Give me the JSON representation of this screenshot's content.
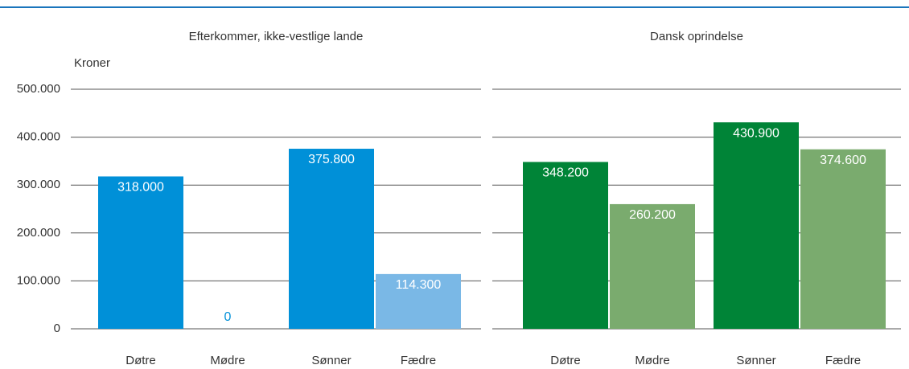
{
  "chart_data": [
    {
      "type": "bar",
      "title": "Efterkommer, ikke-vestlige lande",
      "y_label": "Kroner",
      "categories": [
        "Døtre",
        "Mødre",
        "Sønner",
        "Fædre"
      ],
      "values": [
        318000,
        0,
        375800,
        114300
      ],
      "value_labels": [
        "318.000",
        "0",
        "375.800",
        "114.300"
      ],
      "colors": [
        "#0090d8",
        "#7ab8e6",
        "#0090d8",
        "#7ab8e6"
      ],
      "ylim": [
        0,
        500000
      ],
      "yticks": [
        0,
        {
          "value": 100000,
          "label": "100.000"
        },
        {
          "value": 200000,
          "label": "200.000"
        },
        {
          "value": 300000,
          "label": "300.000"
        },
        {
          "value": 400000,
          "label": "400.000"
        },
        {
          "value": 500000,
          "label": "500.000"
        }
      ],
      "grid": true
    },
    {
      "type": "bar",
      "title": "Dansk oprindelse",
      "categories": [
        "Døtre",
        "Mødre",
        "Sønner",
        "Fædre"
      ],
      "values": [
        348200,
        260200,
        430900,
        374600
      ],
      "value_labels": [
        "348.200",
        "260.200",
        "430.900",
        "374.600"
      ],
      "colors": [
        "#008437",
        "#7aab6e",
        "#008437",
        "#7aab6e"
      ],
      "ylim": [
        0,
        500000
      ],
      "yticks": [
        0,
        100000,
        200000,
        300000,
        400000,
        500000
      ],
      "grid": true
    }
  ]
}
